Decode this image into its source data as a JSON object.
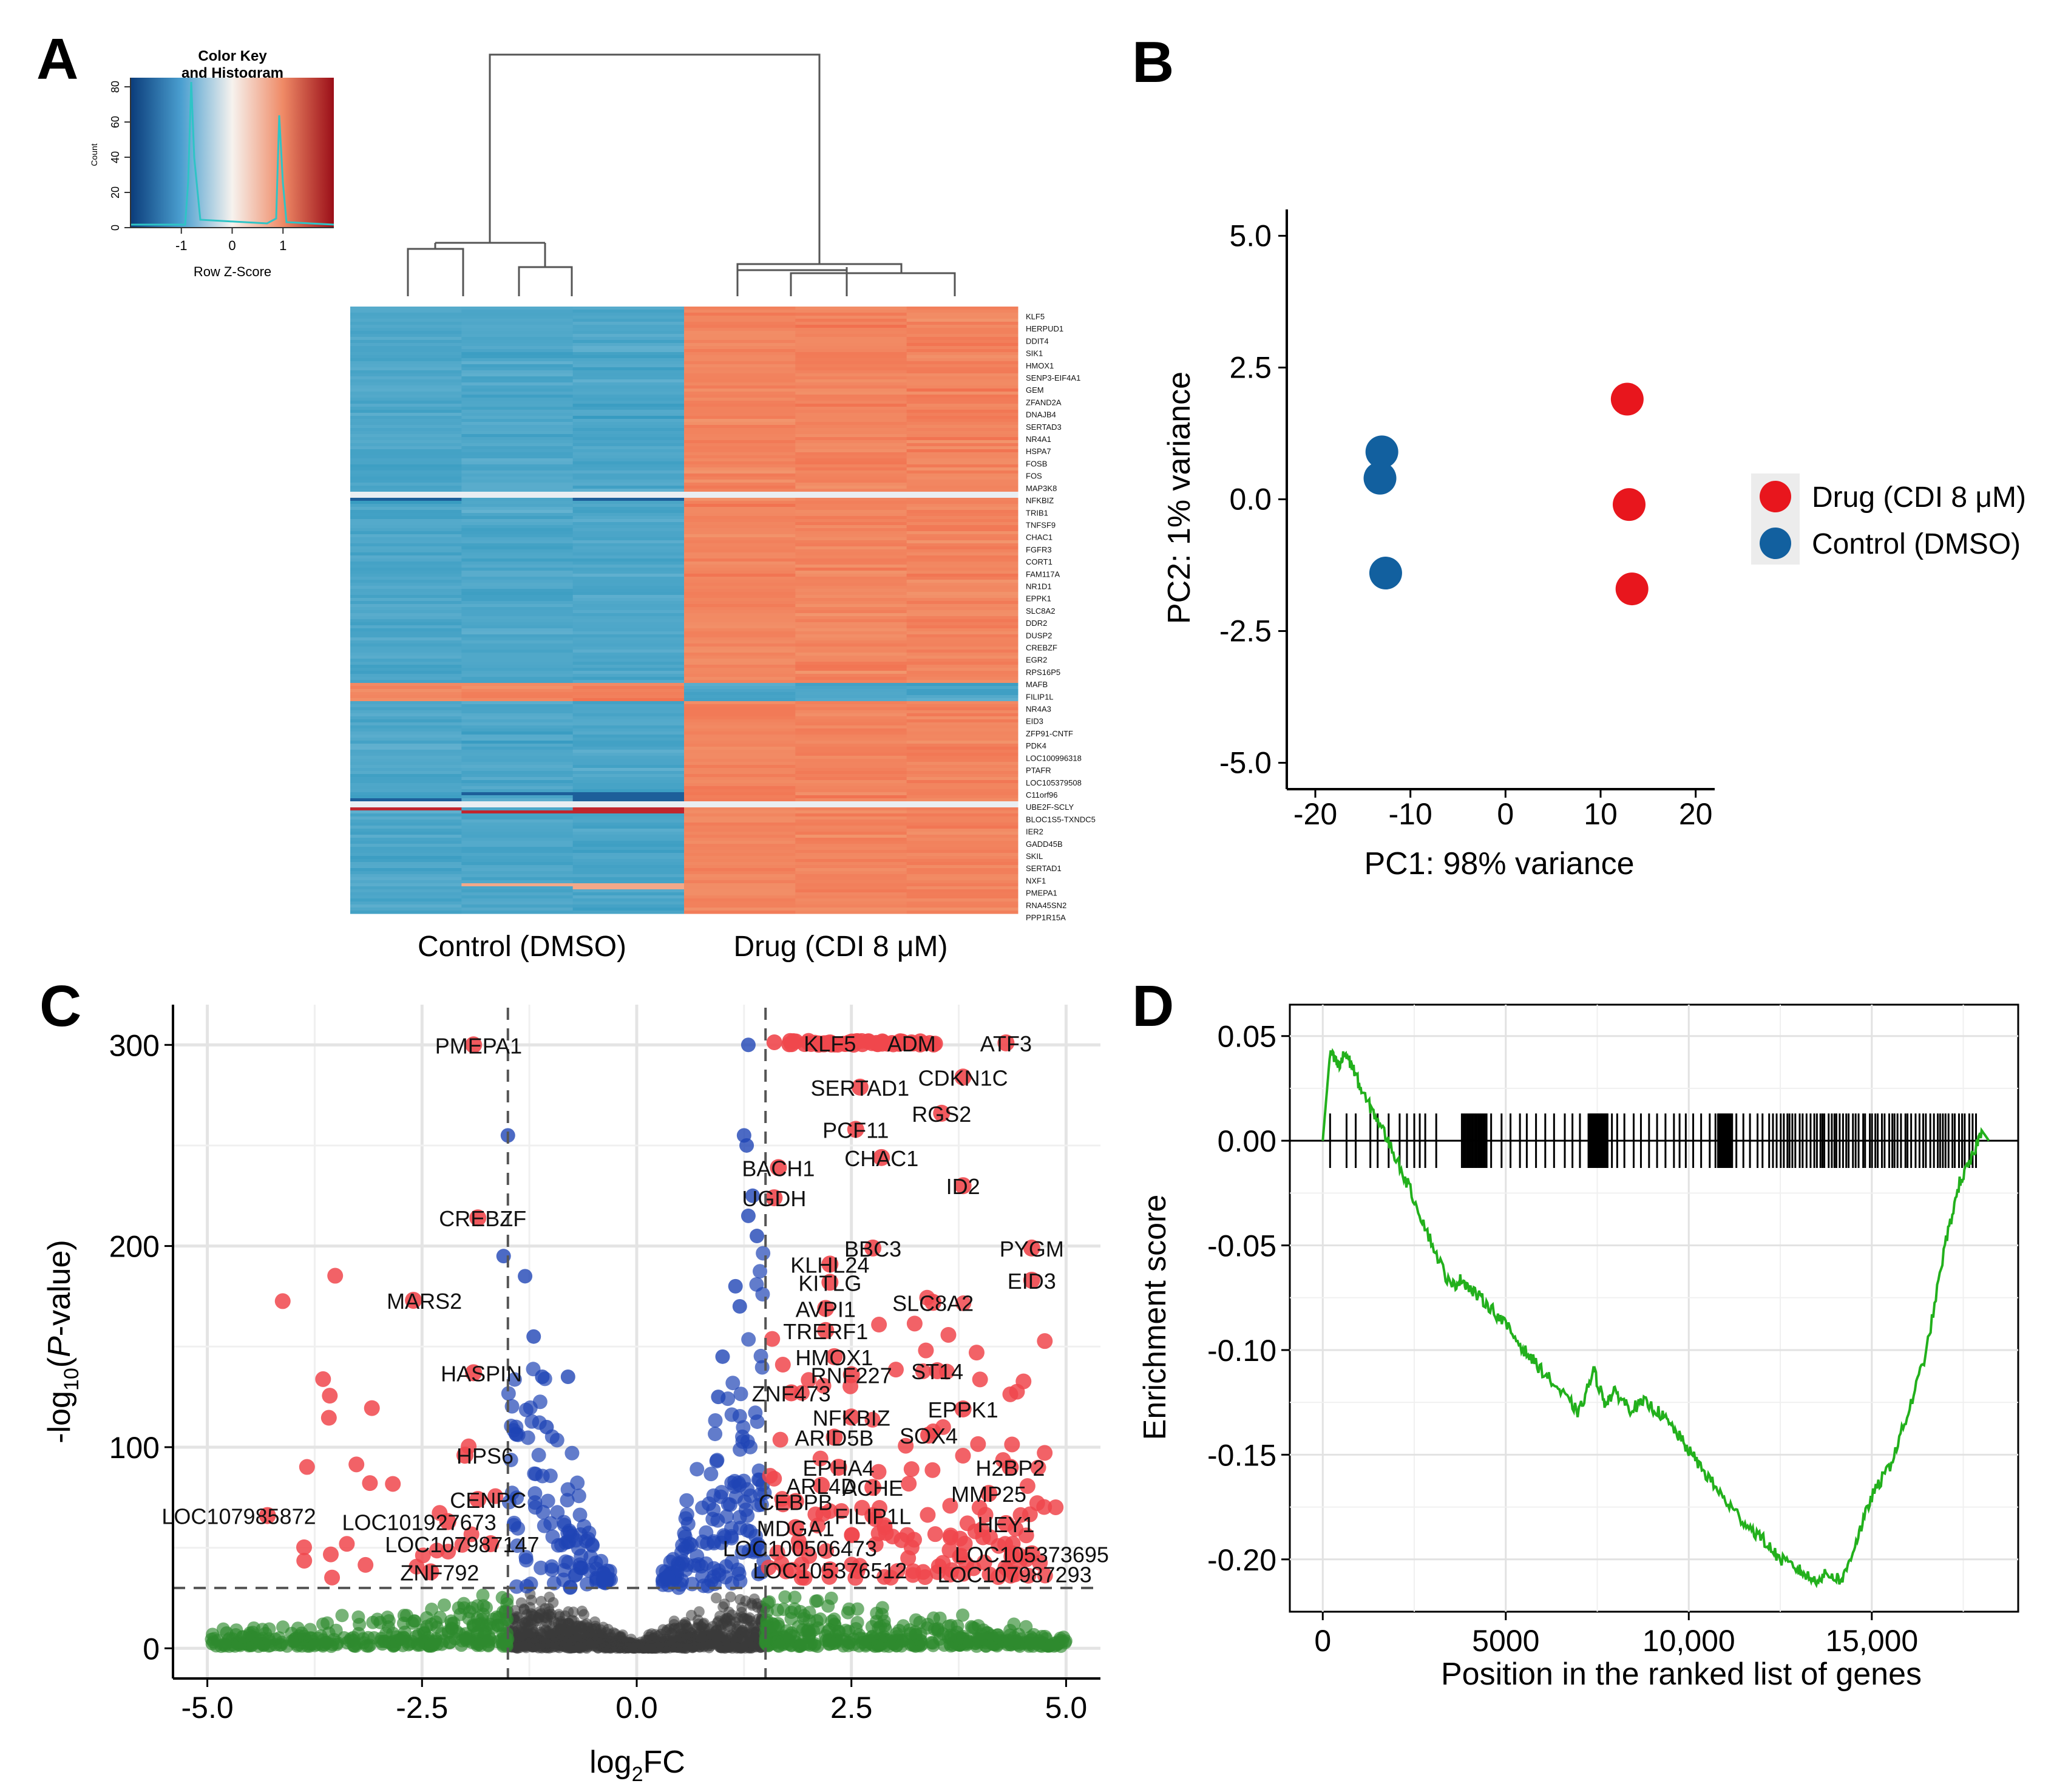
{
  "colors": {
    "blue": "#1f45b5",
    "red": "#f0474c",
    "green": "#2e8b2e",
    "grey": "#3a3a3a",
    "drug": "#e8161d",
    "control": "#12609f",
    "gsea": "#22b01c",
    "heat_low": "#4ea7c9",
    "heat_high": "#f2845f"
  },
  "chart_data": [
    {
      "panel": "A",
      "type": "heatmap",
      "color_key": {
        "title_line1": "Color Key",
        "title_line2": "and Histogram",
        "xlabel": "Row Z-Score",
        "ylabel": "Count",
        "xticks": [
          "-1",
          "0",
          "1"
        ],
        "yticks": [
          "0",
          "20",
          "40",
          "60",
          "80"
        ],
        "range": [
          -2,
          2
        ]
      },
      "columns": [
        "Control (DMSO)",
        "Drug (CDI 8 μM)"
      ],
      "group_labels": [
        "Control (DMSO)",
        "Drug (CDI 8 μM)"
      ],
      "genes": [
        "KLF5",
        "HERPUD1",
        "DDIT4",
        "SIK1",
        "HMOX1",
        "SENP3-EIF4A1",
        "GEM",
        "ZFAND2A",
        "DNAJB4",
        "SERTAD3",
        "NR4A1",
        "HSPA7",
        "FOSB",
        "FOS",
        "MAP3K8",
        "NFKBIZ",
        "TRIB1",
        "TNFSF9",
        "CHAC1",
        "FGFR3",
        "CORT1",
        "FAM117A",
        "NR1D1",
        "EPPK1",
        "SLC8A2",
        "DDR2",
        "DUSP2",
        "CREBZF",
        "EGR2",
        "RPS16P5",
        "MAFB",
        "FILIP1L",
        "NR4A3",
        "EID3",
        "ZFP91-CNTF",
        "PDK4",
        "LOC100996318",
        "PTAFR",
        "LOC105379508",
        "C11orf96",
        "UBE2F-SCLY",
        "BLOC1S5-TXNDC5",
        "IER2",
        "GADD45B",
        "SKIL",
        "SERTAD1",
        "NXF1",
        "PMEPA1",
        "RNA45SN2",
        "PPP1R15A"
      ]
    },
    {
      "panel": "B",
      "type": "scatter",
      "xlabel": "PC1: 98% variance",
      "ylabel": "PC2: 1% variance",
      "xlim": [
        -23,
        22
      ],
      "ylim": [
        -5.5,
        5.5
      ],
      "xticks": [
        "-20",
        "-10",
        "0",
        "10",
        "20"
      ],
      "yticks": [
        "5.0",
        "2.5",
        "0.0",
        "-2.5",
        "-5.0"
      ],
      "series": [
        {
          "name": "Drug (CDI 8 μM)",
          "x": [
            12.8,
            13.0,
            13.3
          ],
          "y": [
            1.9,
            -0.1,
            -1.7
          ]
        },
        {
          "name": "Control (DMSO)",
          "x": [
            -13.0,
            -13.2,
            -12.6
          ],
          "y": [
            0.9,
            0.4,
            -1.4
          ]
        }
      ],
      "legend": [
        "Drug (CDI 8 μM)",
        "Control (DMSO)"
      ]
    },
    {
      "panel": "C",
      "type": "scatter",
      "subtype": "volcano",
      "xlabel": "log2FC",
      "ylabel": "-log10(P-value)",
      "xlim": [
        -5.4,
        5.4
      ],
      "ylim": [
        -15,
        320
      ],
      "xticks": [
        "-5.0",
        "-2.5",
        "0.0",
        "2.5",
        "5.0"
      ],
      "yticks": [
        "300",
        "200",
        "100",
        "0"
      ],
      "fc_threshold": 1.5,
      "p_threshold": 30,
      "labeled_genes": [
        {
          "gene": "PMEPA1",
          "x": -1.9,
          "y": 300
        },
        {
          "gene": "KLF5",
          "x": 2.25,
          "y": 301
        },
        {
          "gene": "ADM",
          "x": 3.2,
          "y": 301
        },
        {
          "gene": "ATF3",
          "x": 4.3,
          "y": 301
        },
        {
          "gene": "CDKN1C",
          "x": 3.8,
          "y": 284
        },
        {
          "gene": "SERTAD1",
          "x": 2.6,
          "y": 279
        },
        {
          "gene": "RGS2",
          "x": 3.55,
          "y": 266
        },
        {
          "gene": "PCF11",
          "x": 2.55,
          "y": 258
        },
        {
          "gene": "CHAC1",
          "x": 2.85,
          "y": 244
        },
        {
          "gene": "BACH1",
          "x": 1.65,
          "y": 239
        },
        {
          "gene": "ID2",
          "x": 3.8,
          "y": 230
        },
        {
          "gene": "UGDH",
          "x": 1.6,
          "y": 224
        },
        {
          "gene": "CREBZF",
          "x": -1.85,
          "y": 214
        },
        {
          "gene": "BBC3",
          "x": 2.75,
          "y": 199
        },
        {
          "gene": "PYGM",
          "x": 4.6,
          "y": 199
        },
        {
          "gene": "KLHL24",
          "x": 2.25,
          "y": 191
        },
        {
          "gene": "EID3",
          "x": 4.6,
          "y": 183
        },
        {
          "gene": "KITLG",
          "x": 2.25,
          "y": 182
        },
        {
          "gene": "MARS2",
          "x": -2.6,
          "y": 173
        },
        {
          "gene": "SLC8A2",
          "x": 3.45,
          "y": 172
        },
        {
          "gene": "AVPI1",
          "x": 2.2,
          "y": 169
        },
        {
          "gene": "TRERF1",
          "x": 2.2,
          "y": 158
        },
        {
          "gene": "HMOX1",
          "x": 2.3,
          "y": 145
        },
        {
          "gene": "ST14",
          "x": 3.5,
          "y": 138
        },
        {
          "gene": "RNF227",
          "x": 2.5,
          "y": 136
        },
        {
          "gene": "HASPIN",
          "x": -1.9,
          "y": 137
        },
        {
          "gene": "ZNF473",
          "x": 1.8,
          "y": 127
        },
        {
          "gene": "EPPK1",
          "x": 3.8,
          "y": 119
        },
        {
          "gene": "NFKBIZ",
          "x": 2.5,
          "y": 115
        },
        {
          "gene": "ARID5B",
          "x": 2.3,
          "y": 105
        },
        {
          "gene": "SOX4",
          "x": 3.4,
          "y": 106
        },
        {
          "gene": "H2BP2",
          "x": 4.35,
          "y": 90
        },
        {
          "gene": "HPS6",
          "x": -2.0,
          "y": 96
        },
        {
          "gene": "EPHA4",
          "x": 2.35,
          "y": 90
        },
        {
          "gene": "ACHE",
          "x": 2.75,
          "y": 80
        },
        {
          "gene": "MMP25",
          "x": 4.1,
          "y": 77
        },
        {
          "gene": "ARL4D",
          "x": 2.15,
          "y": 81
        },
        {
          "gene": "CENPC",
          "x": -1.85,
          "y": 74
        },
        {
          "gene": "LOC107985872",
          "x": -4.3,
          "y": 66
        },
        {
          "gene": "CEBPB",
          "x": 1.85,
          "y": 73
        },
        {
          "gene": "FILIP1L",
          "x": 2.75,
          "y": 66
        },
        {
          "gene": "LOC101927673",
          "x": -2.2,
          "y": 63
        },
        {
          "gene": "HEY1",
          "x": 4.3,
          "y": 62
        },
        {
          "gene": "MDGA1",
          "x": 1.85,
          "y": 60
        },
        {
          "gene": "LOC107987147",
          "x": -1.7,
          "y": 52
        },
        {
          "gene": "LOC100506473",
          "x": 1.9,
          "y": 50
        },
        {
          "gene": "LOC105373695",
          "x": 4.6,
          "y": 47
        },
        {
          "gene": "ZNF792",
          "x": -2.4,
          "y": 38
        },
        {
          "gene": "LOC105376512",
          "x": 2.25,
          "y": 39
        },
        {
          "gene": "LOC107987293",
          "x": 4.4,
          "y": 37
        }
      ]
    },
    {
      "panel": "D",
      "type": "line",
      "xlabel": "Position in the ranked list of genes",
      "ylabel": "Enrichment score",
      "xlim": [
        -900,
        19000
      ],
      "ylim": [
        -0.225,
        0.065
      ],
      "xticks": [
        "0",
        "5000",
        "10,000",
        "15,000"
      ],
      "yticks": [
        "0.05",
        "0.00",
        "-0.05",
        "-0.10",
        "-0.15",
        "-0.20"
      ],
      "x": [
        0,
        200,
        450,
        600,
        800,
        1100,
        1500,
        2000,
        2500,
        3000,
        3500,
        3800,
        4100,
        4500,
        5000,
        5500,
        6000,
        6500,
        7000,
        7400,
        7700,
        8000,
        8400,
        8800,
        9200,
        9600,
        10000,
        10500,
        11000,
        11500,
        12000,
        12500,
        13000,
        13400,
        13800,
        14200,
        14600,
        15000,
        15500,
        16000,
        16500,
        17000,
        17400,
        17700,
        18000,
        18200
      ],
      "y": [
        0.0,
        0.042,
        0.035,
        0.042,
        0.036,
        0.022,
        0.01,
        -0.008,
        -0.028,
        -0.05,
        -0.07,
        -0.066,
        -0.072,
        -0.078,
        -0.088,
        -0.1,
        -0.11,
        -0.12,
        -0.13,
        -0.11,
        -0.125,
        -0.12,
        -0.128,
        -0.125,
        -0.13,
        -0.138,
        -0.148,
        -0.16,
        -0.172,
        -0.182,
        -0.19,
        -0.2,
        -0.205,
        -0.21,
        -0.207,
        -0.21,
        -0.19,
        -0.17,
        -0.155,
        -0.13,
        -0.1,
        -0.05,
        -0.02,
        -0.01,
        0.005,
        0.0
      ],
      "hit_density_note": "gene hits ticks along zero line"
    }
  ]
}
